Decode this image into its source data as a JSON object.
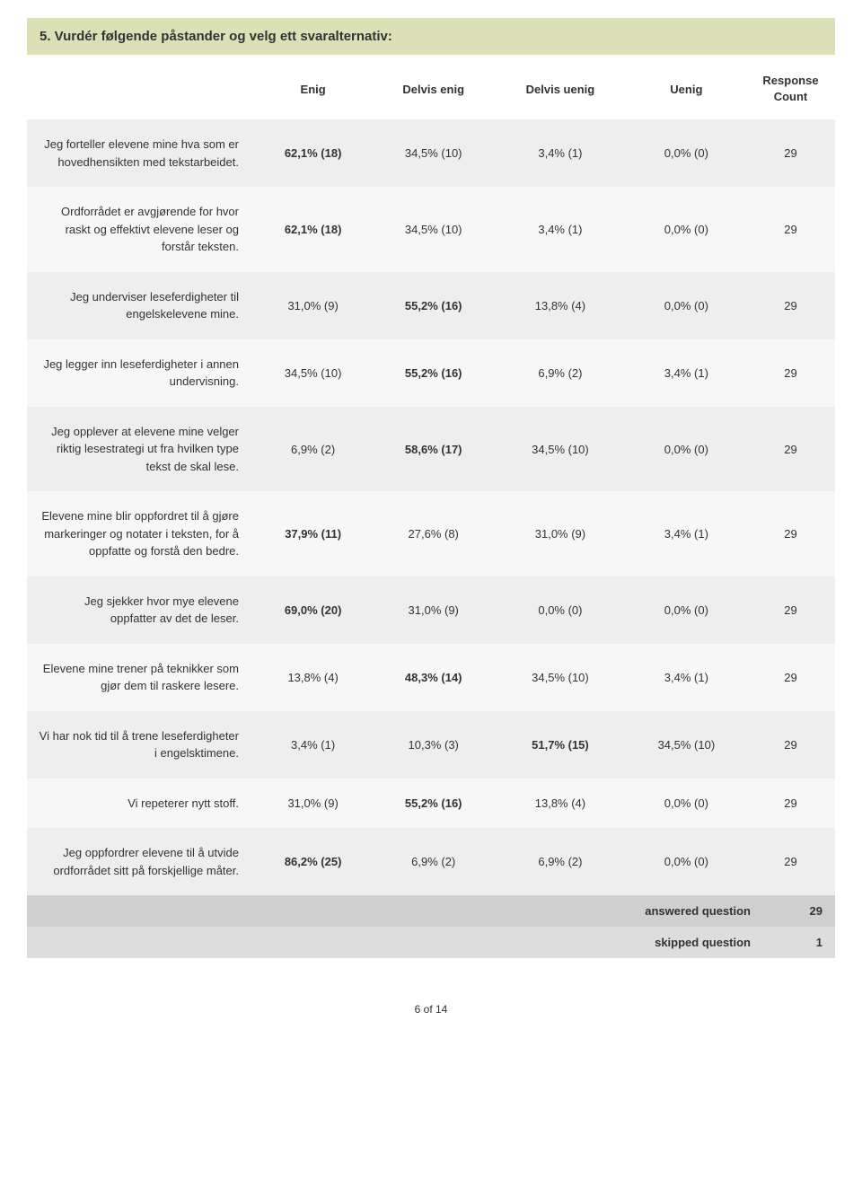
{
  "title": "5. Vurdér følgende påstander og velg ett svaralternativ:",
  "columns": [
    "Enig",
    "Delvis enig",
    "Delvis uenig",
    "Uenig",
    "Response Count"
  ],
  "rows": [
    {
      "label": "Jeg forteller elevene mine hva som er hovedhensikten med tekstarbeidet.",
      "cells": [
        "62,1% (18)",
        "34,5% (10)",
        "3,4% (1)",
        "0,0% (0)",
        "29"
      ],
      "bold_idx": 0
    },
    {
      "label": "Ordforrådet er avgjørende for hvor raskt og effektivt elevene leser og forstår teksten.",
      "cells": [
        "62,1% (18)",
        "34,5% (10)",
        "3,4% (1)",
        "0,0% (0)",
        "29"
      ],
      "bold_idx": 0
    },
    {
      "label": "Jeg underviser leseferdigheter til engelskelevene mine.",
      "cells": [
        "31,0% (9)",
        "55,2% (16)",
        "13,8% (4)",
        "0,0% (0)",
        "29"
      ],
      "bold_idx": 1
    },
    {
      "label": "Jeg legger inn leseferdigheter i annen undervisning.",
      "cells": [
        "34,5% (10)",
        "55,2% (16)",
        "6,9% (2)",
        "3,4% (1)",
        "29"
      ],
      "bold_idx": 1
    },
    {
      "label": "Jeg opplever at elevene mine velger riktig lesestrategi ut fra hvilken type tekst de skal lese.",
      "cells": [
        "6,9% (2)",
        "58,6% (17)",
        "34,5% (10)",
        "0,0% (0)",
        "29"
      ],
      "bold_idx": 1
    },
    {
      "label": "Elevene mine blir oppfordret til å gjøre markeringer og notater i teksten, for å oppfatte og forstå den bedre.",
      "cells": [
        "37,9% (11)",
        "27,6% (8)",
        "31,0% (9)",
        "3,4% (1)",
        "29"
      ],
      "bold_idx": 0
    },
    {
      "label": "Jeg sjekker hvor mye elevene oppfatter av det de leser.",
      "cells": [
        "69,0% (20)",
        "31,0% (9)",
        "0,0% (0)",
        "0,0% (0)",
        "29"
      ],
      "bold_idx": 0
    },
    {
      "label": "Elevene mine trener på teknikker som gjør dem til raskere lesere.",
      "cells": [
        "13,8% (4)",
        "48,3% (14)",
        "34,5% (10)",
        "3,4% (1)",
        "29"
      ],
      "bold_idx": 1
    },
    {
      "label": "Vi har nok tid til å trene leseferdigheter i engelsktimene.",
      "cells": [
        "3,4% (1)",
        "10,3% (3)",
        "51,7% (15)",
        "34,5% (10)",
        "29"
      ],
      "bold_idx": 2
    },
    {
      "label": "Vi repeterer nytt stoff.",
      "cells": [
        "31,0% (9)",
        "55,2% (16)",
        "13,8% (4)",
        "0,0% (0)",
        "29"
      ],
      "bold_idx": 1
    },
    {
      "label": "Jeg oppfordrer elevene til å utvide ordforrådet sitt på forskjellige måter.",
      "cells": [
        "86,2% (25)",
        "6,9% (2)",
        "6,9% (2)",
        "0,0% (0)",
        "29"
      ],
      "bold_idx": 0
    }
  ],
  "summary": {
    "answered_label": "answered question",
    "answered_count": "29",
    "skipped_label": "skipped question",
    "skipped_count": "1"
  },
  "pager": "6 of 14"
}
